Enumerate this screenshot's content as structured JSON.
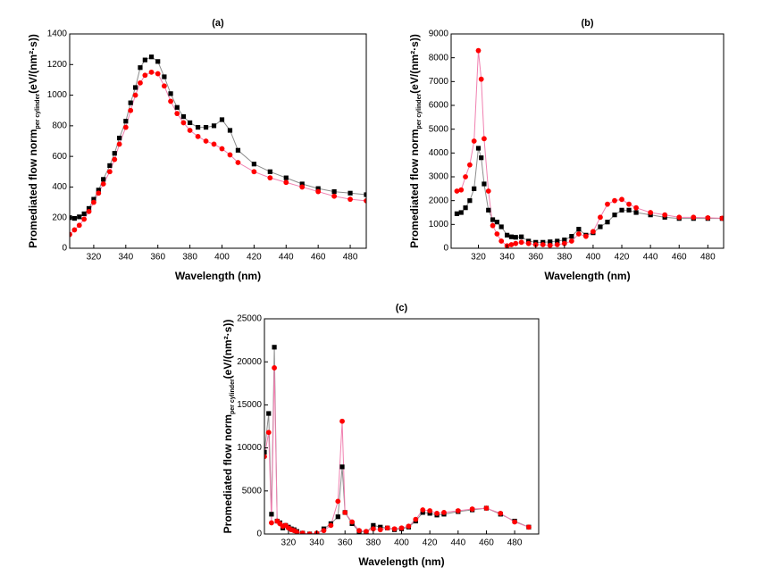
{
  "chart_data": [
    {
      "type": "scatter_line",
      "title": "(a)",
      "xlabel": "Wavelength (nm)",
      "ylabel": "Promediated flow norm",
      "ylabel_sub": "per cylinder",
      "ylabel_unit": "(eV/(nm²·s))",
      "xlim": [
        305,
        490
      ],
      "xticks": [
        320,
        340,
        360,
        380,
        400,
        420,
        440,
        460,
        480
      ],
      "ylim": [
        0,
        1400
      ],
      "yticks": [
        0,
        200,
        400,
        600,
        800,
        1000,
        1200,
        1400
      ],
      "x": [
        305,
        308,
        311,
        314,
        317,
        320,
        323,
        326,
        330,
        333,
        336,
        340,
        343,
        346,
        349,
        352,
        356,
        360,
        364,
        368,
        372,
        376,
        380,
        385,
        390,
        395,
        400,
        405,
        410,
        420,
        430,
        440,
        450,
        460,
        470,
        480,
        490
      ],
      "series": [
        {
          "color": "#000000",
          "line_color": "#8c8c8c",
          "marker": "square",
          "values": [
            200,
            195,
            205,
            225,
            260,
            320,
            380,
            450,
            540,
            620,
            720,
            830,
            950,
            1050,
            1180,
            1230,
            1250,
            1220,
            1120,
            1010,
            920,
            860,
            820,
            790,
            790,
            800,
            840,
            770,
            640,
            550,
            500,
            460,
            420,
            390,
            370,
            360,
            350
          ]
        },
        {
          "color": "#ff0000",
          "line_color": "#f080b0",
          "marker": "circle",
          "values": [
            90,
            120,
            150,
            190,
            240,
            300,
            360,
            420,
            500,
            580,
            680,
            790,
            900,
            1000,
            1080,
            1130,
            1150,
            1140,
            1060,
            960,
            880,
            820,
            770,
            730,
            700,
            680,
            650,
            610,
            560,
            500,
            460,
            430,
            400,
            370,
            340,
            320,
            310
          ]
        }
      ]
    },
    {
      "type": "scatter_line",
      "title": "(b)",
      "xlabel": "Wavelength (nm)",
      "ylabel": "Promediated flow norm",
      "ylabel_sub": "per cylinder",
      "ylabel_unit": "(eV/(nm²·s))",
      "xlim": [
        301,
        491
      ],
      "xticks": [
        320,
        340,
        360,
        380,
        400,
        420,
        440,
        460,
        480
      ],
      "ylim": [
        0,
        9000
      ],
      "yticks": [
        0,
        1000,
        2000,
        3000,
        4000,
        5000,
        6000,
        7000,
        8000,
        9000
      ],
      "x": [
        305,
        308,
        311,
        314,
        317,
        320,
        322,
        324,
        327,
        330,
        333,
        336,
        340,
        343,
        346,
        350,
        355,
        360,
        365,
        370,
        375,
        380,
        385,
        390,
        395,
        400,
        405,
        410,
        415,
        420,
        425,
        430,
        440,
        450,
        460,
        470,
        480,
        490
      ],
      "series": [
        {
          "color": "#000000",
          "line_color": "#8c8c8c",
          "marker": "square",
          "values": [
            1450,
            1500,
            1700,
            2000,
            2500,
            4200,
            3800,
            2700,
            1600,
            1200,
            1100,
            900,
            550,
            480,
            460,
            480,
            300,
            250,
            250,
            270,
            300,
            350,
            500,
            800,
            550,
            650,
            900,
            1100,
            1400,
            1600,
            1600,
            1500,
            1400,
            1300,
            1250,
            1250,
            1250,
            1250
          ]
        },
        {
          "color": "#ff0000",
          "line_color": "#f080b0",
          "marker": "circle",
          "values": [
            2400,
            2450,
            3000,
            3500,
            4500,
            8300,
            7100,
            4600,
            2400,
            950,
            600,
            300,
            100,
            150,
            200,
            250,
            200,
            150,
            150,
            120,
            150,
            200,
            300,
            600,
            500,
            700,
            1300,
            1850,
            2000,
            2050,
            1850,
            1700,
            1500,
            1400,
            1300,
            1300,
            1280,
            1260
          ]
        }
      ]
    },
    {
      "type": "scatter_line",
      "title": "(c)",
      "xlabel": "Wavelength (nm)",
      "ylabel": "Promediated flow norm",
      "ylabel_sub": "per cylinder",
      "ylabel_unit": "(eV/(nm²·s))",
      "xlim": [
        303,
        497
      ],
      "xticks": [
        320,
        340,
        360,
        380,
        400,
        420,
        440,
        460,
        480
      ],
      "ylim": [
        0,
        25000
      ],
      "yticks": [
        0,
        5000,
        10000,
        15000,
        20000,
        25000
      ],
      "x": [
        303,
        306,
        308,
        310,
        312,
        314,
        316,
        318,
        320,
        322,
        324,
        326,
        330,
        335,
        340,
        345,
        350,
        355,
        358,
        360,
        365,
        370,
        375,
        380,
        385,
        390,
        395,
        400,
        405,
        410,
        415,
        420,
        425,
        430,
        440,
        450,
        460,
        470,
        480,
        490
      ],
      "series": [
        {
          "color": "#000000",
          "line_color": "#8c8c8c",
          "marker": "square",
          "values": [
            9500,
            14000,
            2300,
            21700,
            1500,
            1300,
            700,
            1000,
            800,
            600,
            500,
            300,
            100,
            0,
            0,
            600,
            1200,
            2000,
            7800,
            2500,
            1200,
            300,
            200,
            1000,
            800,
            700,
            500,
            600,
            800,
            1500,
            2500,
            2400,
            2200,
            2300,
            2600,
            2800,
            3000,
            2300,
            1500,
            800
          ]
        },
        {
          "color": "#ff0000",
          "line_color": "#f080b0",
          "marker": "circle",
          "values": [
            9000,
            11800,
            1300,
            19300,
            1500,
            1200,
            900,
            1000,
            700,
            500,
            400,
            200,
            100,
            0,
            100,
            400,
            1000,
            3800,
            13100,
            2500,
            1400,
            400,
            300,
            600,
            500,
            700,
            600,
            700,
            900,
            1700,
            2800,
            2700,
            2400,
            2500,
            2700,
            2900,
            3000,
            2400,
            1400,
            800
          ]
        }
      ]
    }
  ]
}
